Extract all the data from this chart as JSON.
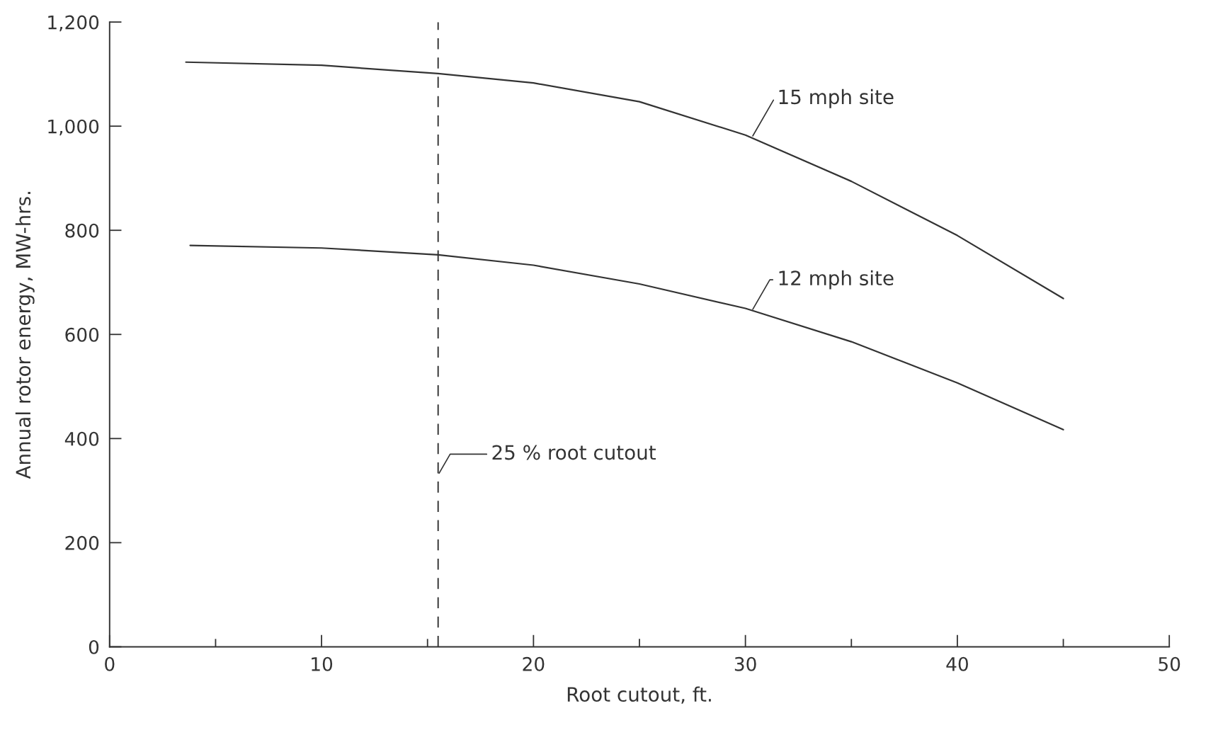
{
  "chart_data": {
    "type": "line",
    "xlabel": "Root cutout, ft.",
    "ylabel": "Annual rotor energy, MW-hrs.",
    "xlim": [
      0,
      50
    ],
    "ylim": [
      0,
      1200
    ],
    "xticks": [
      0,
      {
        "value": 5,
        "label": null
      },
      10,
      {
        "value": 15,
        "label": null
      },
      20,
      {
        "value": 25,
        "label": null
      },
      30,
      {
        "value": 35,
        "label": null
      },
      40,
      {
        "value": 45,
        "label": null
      },
      50
    ],
    "yticks": [
      0,
      200,
      400,
      600,
      800,
      {
        "value": 1000,
        "label": "1,000"
      },
      {
        "value": 1200,
        "label": "1,200"
      }
    ],
    "grid": false,
    "legend": false,
    "marker": "none",
    "line_style": "solid",
    "series": [
      {
        "name": "15 mph site",
        "color": "#333333",
        "x": [
          3.6,
          10,
          15.5,
          20,
          25,
          30,
          35,
          40,
          45
        ],
        "values": [
          1123,
          1117,
          1101,
          1083,
          1047,
          983,
          894,
          790,
          669
        ]
      },
      {
        "name": "12 mph site",
        "color": "#333333",
        "x": [
          3.8,
          10,
          15.5,
          20,
          25,
          30,
          35,
          40,
          45
        ],
        "values": [
          771,
          766,
          753,
          733,
          697,
          650,
          586,
          507,
          417
        ]
      }
    ],
    "ref_lines": [
      {
        "axis": "x",
        "value": 15.5,
        "label": "25 % root cutout",
        "color": "#333333",
        "line_style": "dashed"
      }
    ]
  }
}
